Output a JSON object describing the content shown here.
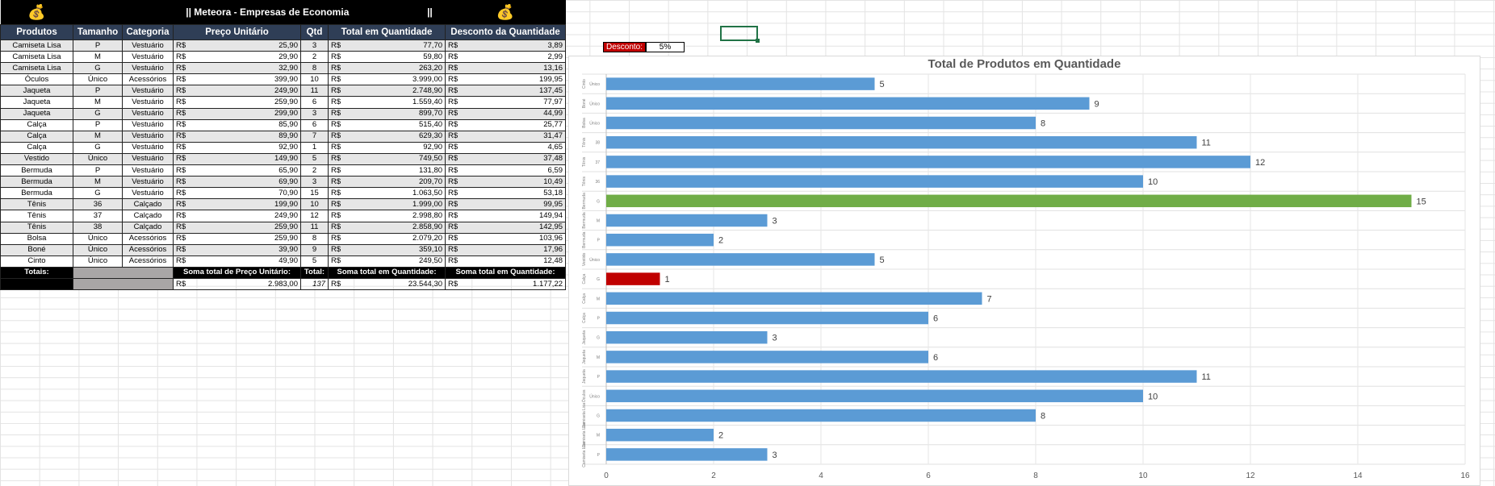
{
  "sheet": {
    "title": "Meteora - Empresas de Economia",
    "title_marks": [
      "||",
      "||"
    ],
    "bag_icon": "money-bag-icon",
    "headers": [
      "Produtos",
      "Tamanho",
      "Categoria",
      "Preço Unitário",
      "Qtd",
      "Total em Quantidade",
      "Desconto da Quantidade"
    ],
    "currency": "R$",
    "rows": [
      [
        "Camiseta Lisa",
        "P",
        "Vestuário",
        "25,90",
        "3",
        "77,70",
        "3,89"
      ],
      [
        "Camiseta Lisa",
        "M",
        "Vestuário",
        "29,90",
        "2",
        "59,80",
        "2,99"
      ],
      [
        "Camiseta Lisa",
        "G",
        "Vestuário",
        "32,90",
        "8",
        "263,20",
        "13,16"
      ],
      [
        "Óculos",
        "Único",
        "Acessórios",
        "399,90",
        "10",
        "3.999,00",
        "199,95"
      ],
      [
        "Jaqueta",
        "P",
        "Vestuário",
        "249,90",
        "11",
        "2.748,90",
        "137,45"
      ],
      [
        "Jaqueta",
        "M",
        "Vestuário",
        "259,90",
        "6",
        "1.559,40",
        "77,97"
      ],
      [
        "Jaqueta",
        "G",
        "Vestuário",
        "299,90",
        "3",
        "899,70",
        "44,99"
      ],
      [
        "Calça",
        "P",
        "Vestuário",
        "85,90",
        "6",
        "515,40",
        "25,77"
      ],
      [
        "Calça",
        "M",
        "Vestuário",
        "89,90",
        "7",
        "629,30",
        "31,47"
      ],
      [
        "Calça",
        "G",
        "Vestuário",
        "92,90",
        "1",
        "92,90",
        "4,65"
      ],
      [
        "Vestido",
        "Único",
        "Vestuário",
        "149,90",
        "5",
        "749,50",
        "37,48"
      ],
      [
        "Bermuda",
        "P",
        "Vestuário",
        "65,90",
        "2",
        "131,80",
        "6,59"
      ],
      [
        "Bermuda",
        "M",
        "Vestuário",
        "69,90",
        "3",
        "209,70",
        "10,49"
      ],
      [
        "Bermuda",
        "G",
        "Vestuário",
        "70,90",
        "15",
        "1.063,50",
        "53,18"
      ],
      [
        "Tênis",
        "36",
        "Calçado",
        "199,90",
        "10",
        "1.999,00",
        "99,95"
      ],
      [
        "Tênis",
        "37",
        "Calçado",
        "249,90",
        "12",
        "2.998,80",
        "149,94"
      ],
      [
        "Tênis",
        "38",
        "Calçado",
        "259,90",
        "11",
        "2.858,90",
        "142,95"
      ],
      [
        "Bolsa",
        "Único",
        "Acessórios",
        "259,90",
        "8",
        "2.079,20",
        "103,96"
      ],
      [
        "Boné",
        "Único",
        "Acessórios",
        "39,90",
        "9",
        "359,10",
        "17,96"
      ],
      [
        "Cinto",
        "Único",
        "Acessórios",
        "49,90",
        "5",
        "249,50",
        "12,48"
      ]
    ],
    "totals": {
      "label": "Totais:",
      "sum_price_label": "Soma total de Preço Unitário:",
      "qty_label": "Total:",
      "sum_total_label": "Soma total em Quantidade:",
      "sum_discount_label": "Soma total em Quantidade:",
      "sum_price": "2.983,00",
      "qty": "137",
      "sum_total": "23.544,30",
      "sum_discount": "1.177,22"
    }
  },
  "discount": {
    "label": "Desconto:",
    "value": "5%"
  },
  "chart_data": {
    "type": "bar",
    "orientation": "horizontal",
    "title": "Total de Produtos em Quantidade",
    "categories": [
      "Cinto|Único",
      "Boné|Único",
      "Bolsa|Único",
      "Tênis|38",
      "Tênis|37",
      "Tênis|36",
      "Bermuda|G",
      "Bermuda|M",
      "Bermuda|P",
      "Vestido|Único",
      "Calça|G",
      "Calça|M",
      "Calça|P",
      "Jaqueta|G",
      "Jaqueta|M",
      "Jaqueta|P",
      "Óculos|Único",
      "Camiseta Lisa|G",
      "Camiseta Lisa|M",
      "Camiseta Lisa|P"
    ],
    "values": [
      5,
      9,
      8,
      11,
      12,
      10,
      15,
      3,
      2,
      5,
      1,
      7,
      6,
      3,
      6,
      11,
      10,
      8,
      2,
      3
    ],
    "bar_colors": [
      "#5b9bd5",
      "#5b9bd5",
      "#5b9bd5",
      "#5b9bd5",
      "#5b9bd5",
      "#5b9bd5",
      "#70ad47",
      "#5b9bd5",
      "#5b9bd5",
      "#5b9bd5",
      "#c00000",
      "#5b9bd5",
      "#5b9bd5",
      "#5b9bd5",
      "#5b9bd5",
      "#5b9bd5",
      "#5b9bd5",
      "#5b9bd5",
      "#5b9bd5",
      "#5b9bd5"
    ],
    "xlim": [
      0,
      16
    ],
    "xticks": [
      0,
      2,
      4,
      6,
      8,
      10,
      12,
      14,
      16
    ],
    "grid": true
  }
}
